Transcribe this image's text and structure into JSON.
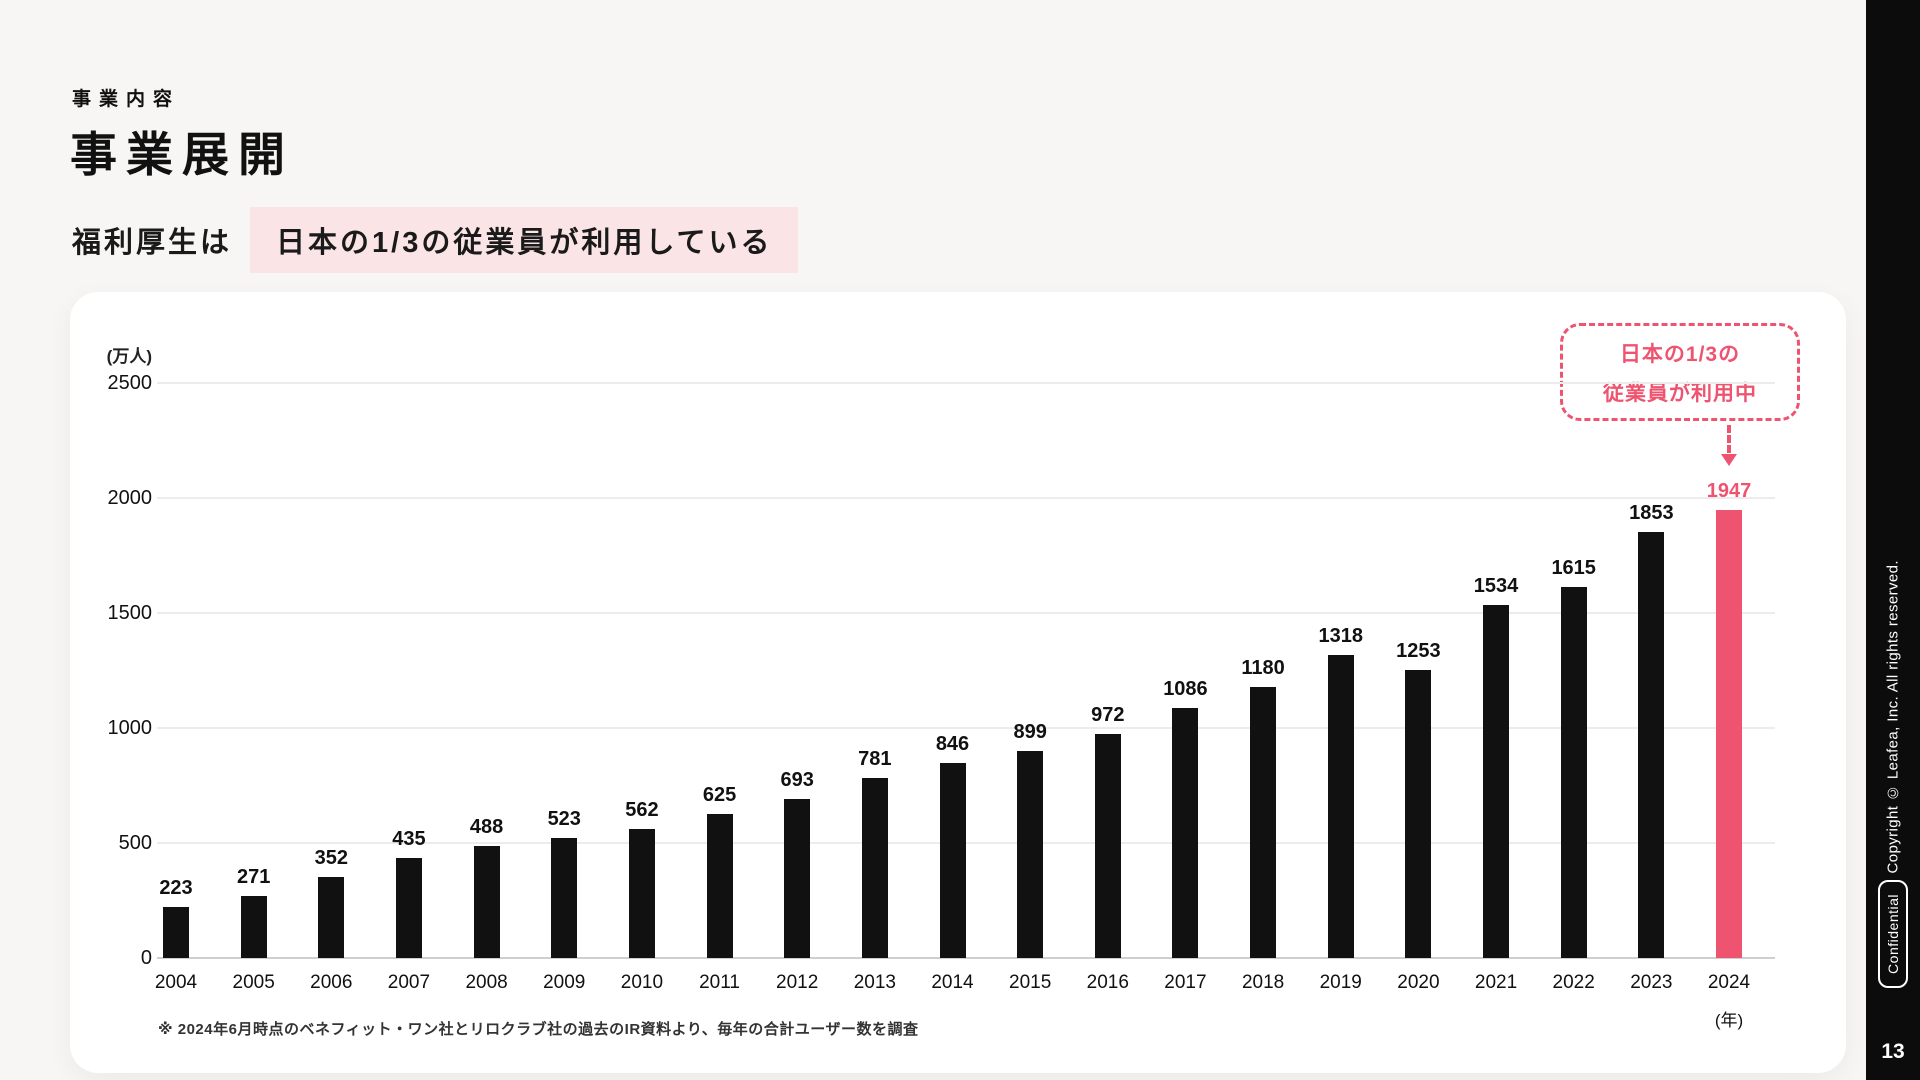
{
  "colors": {
    "accent_pink": "#ee5470",
    "highlight_bg": "#fae4e5",
    "bar_black": "#111111",
    "slide_bg": "#f7f6f4",
    "sidebar_bg": "#0c0c0c"
  },
  "header": {
    "eyebrow": "事業内容",
    "title": "事業展開",
    "subtitle_prefix": "福利厚生は",
    "subtitle_highlight": "日本の1/3の従業員が利用している"
  },
  "chart_data": {
    "type": "bar",
    "title": "",
    "unit_label": "(万人)",
    "x_axis_unit": "(年)",
    "ylim": [
      0,
      2500
    ],
    "yticks": [
      0,
      500,
      1000,
      1500,
      2000,
      2500
    ],
    "grid": true,
    "categories": [
      "2004",
      "2005",
      "2006",
      "2007",
      "2008",
      "2009",
      "2010",
      "2011",
      "2012",
      "2013",
      "2014",
      "2015",
      "2016",
      "2017",
      "2018",
      "2019",
      "2020",
      "2021",
      "2022",
      "2023",
      "2024"
    ],
    "values": [
      223,
      271,
      352,
      435,
      488,
      523,
      562,
      625,
      693,
      781,
      846,
      899,
      972,
      1086,
      1180,
      1318,
      1253,
      1534,
      1615,
      1853,
      1947
    ],
    "highlight_index": 20,
    "bar_color": "#111111",
    "highlight_color": "#ee5470"
  },
  "callout": {
    "line1": "日本の1/3の",
    "line2": "従業員が利用中"
  },
  "footnote": "※ 2024年6月時点のベネフィット・ワン社とリロクラブ社の過去のIR資料より、毎年の合計ユーザー数を調査",
  "sidebar": {
    "copyright": "Copyright © Leafea, Inc. All rights reserved.",
    "confidential": "Confidential",
    "page_number": "13"
  }
}
